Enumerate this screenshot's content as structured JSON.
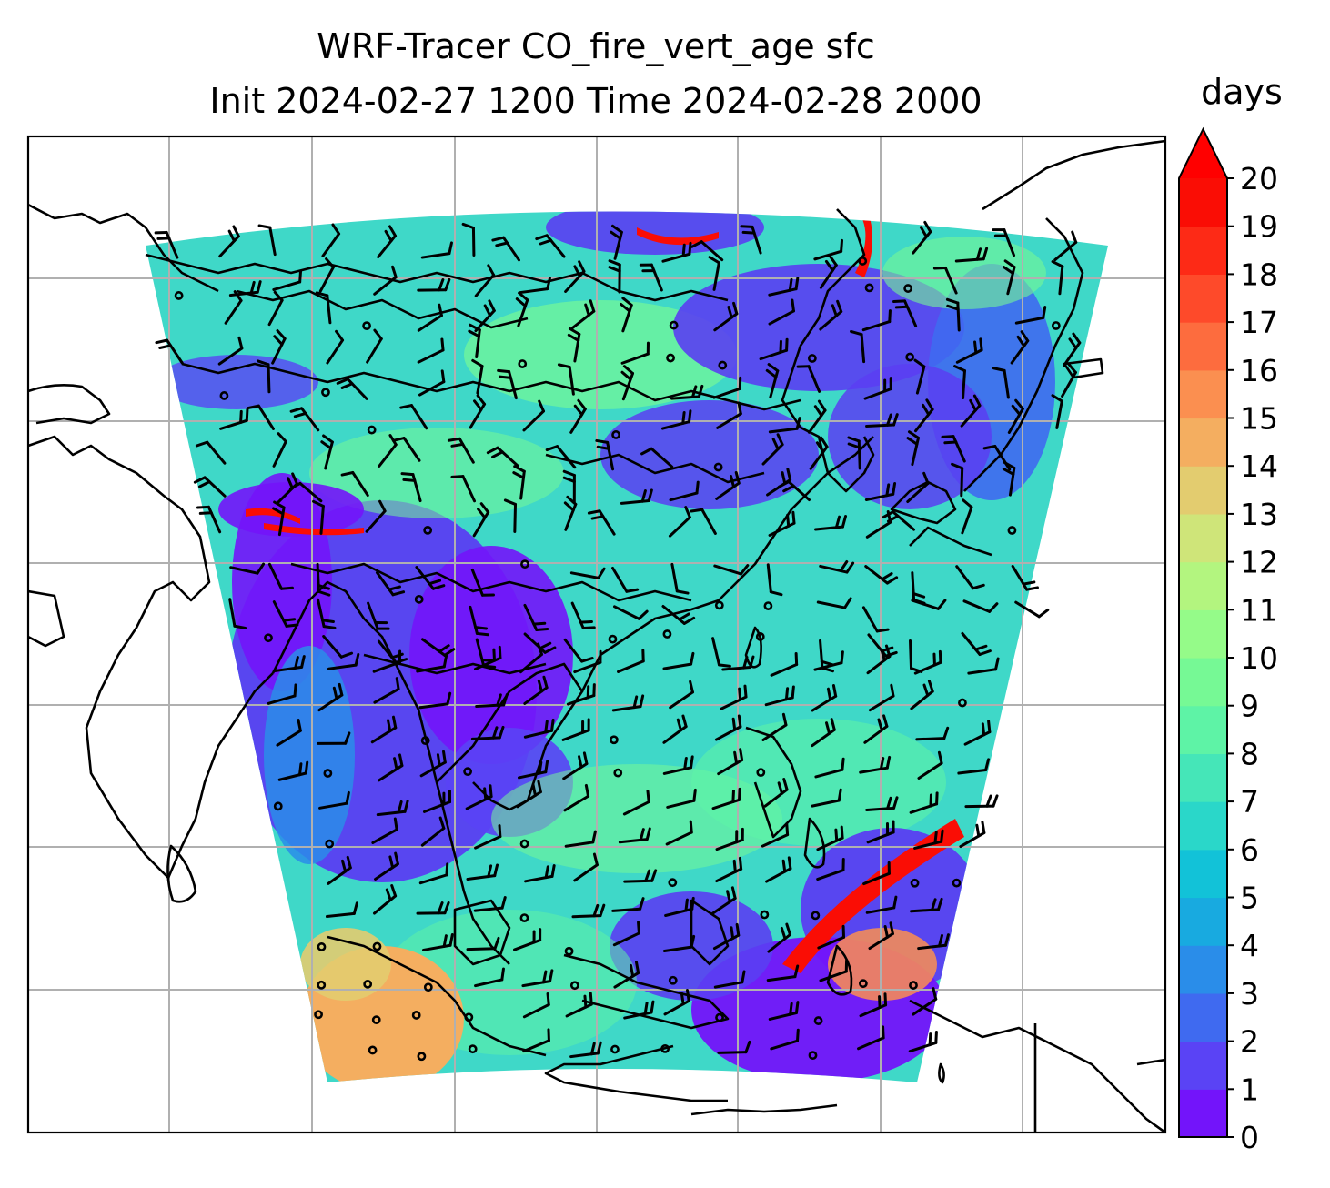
{
  "title": {
    "line1": "WRF-Tracer CO_fire_vert_age sfc",
    "line2": "Init 2024-02-27 1200 Time 2024-02-28 2000"
  },
  "colorbar": {
    "label": "days",
    "min": 0,
    "max": 20,
    "extend": "max",
    "ticks": [
      "0",
      "1",
      "2",
      "3",
      "4",
      "5",
      "6",
      "7",
      "8",
      "9",
      "10",
      "11",
      "12",
      "13",
      "14",
      "15",
      "16",
      "17",
      "18",
      "19",
      "20"
    ],
    "colors": [
      "#7314fa",
      "#5a43f5",
      "#3f6af0",
      "#2a8de9",
      "#18aae0",
      "#12c2d8",
      "#2ad7c9",
      "#45e6b8",
      "#5ef3a6",
      "#76f995",
      "#95fb89",
      "#b3f57f",
      "#cfe579",
      "#e3cc6f",
      "#f4ae60",
      "#fb8f50",
      "#fd6c3e",
      "#fe4a2a",
      "#fd2a16",
      "#fa0d05"
    ],
    "over_color": "#ff0000"
  },
  "map": {
    "projection": "lambert-conformal",
    "gridlines": true,
    "coastlines": true,
    "field": "CO_fire_vert_age",
    "overlay": "wind-barbs"
  }
}
